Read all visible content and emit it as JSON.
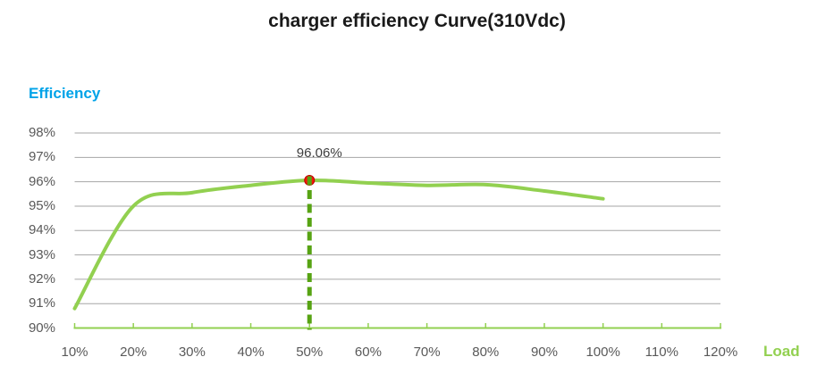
{
  "title": "charger efficiency Curve(310Vdc)",
  "colors": {
    "curve_green": "#92D050",
    "axis_green": "#92D050",
    "dashed_green": "#57A313",
    "marker_red": "#F5180C",
    "marker_red_edge": "#C00000",
    "efficiency_label_blue": "#00A3E8",
    "load_label_green": "#92D050",
    "gridline_gray": "#A6A6A6",
    "tick_text_gray": "#595959",
    "title_black": "#1a1a1a",
    "annotation_gray": "#3f3f3f"
  },
  "chart_data": {
    "type": "line",
    "title": "charger efficiency Curve(310Vdc)",
    "xlabel": "Load",
    "ylabel": "Efficiency",
    "x": [
      10,
      20,
      30,
      40,
      50,
      60,
      70,
      80,
      90,
      100
    ],
    "values": [
      90.8,
      95.0,
      95.55,
      95.85,
      96.06,
      95.95,
      95.85,
      95.88,
      95.62,
      95.3
    ],
    "series_name": "efficiency",
    "xlim": [
      10,
      120
    ],
    "ylim": [
      90,
      98
    ],
    "grid": true,
    "x_tick_values": [
      10,
      20,
      30,
      40,
      50,
      60,
      70,
      80,
      90,
      100,
      110,
      120
    ],
    "x_tick_labels": [
      "10%",
      "20%",
      "30%",
      "40%",
      "50%",
      "60%",
      "70%",
      "80%",
      "90%",
      "100%",
      "110%",
      "120%"
    ],
    "y_tick_values": [
      90,
      91,
      92,
      93,
      94,
      95,
      96,
      97,
      98
    ],
    "y_tick_labels": [
      "90%",
      "91%",
      "92%",
      "93%",
      "94%",
      "95%",
      "96%",
      "97%",
      "98%"
    ],
    "marker": {
      "x": 50,
      "y": 96.06,
      "label": "96.06%"
    },
    "dashed_line_x": 50,
    "legend": "none"
  }
}
